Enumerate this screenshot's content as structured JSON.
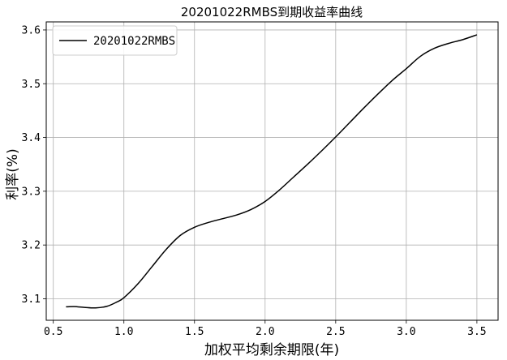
{
  "chart_data": {
    "type": "line",
    "title": "20201022RMBS到期收益率曲线",
    "xlabel": "加权平均剩余期限(年)",
    "ylabel": "利率(%)",
    "xlim": [
      0.45,
      3.65
    ],
    "ylim": [
      3.06,
      3.615
    ],
    "xticks": [
      0.5,
      1.0,
      1.5,
      2.0,
      2.5,
      3.0,
      3.5
    ],
    "xtick_labels": [
      "0.5",
      "1.0",
      "1.5",
      "2.0",
      "2.5",
      "3.0",
      "3.5"
    ],
    "yticks": [
      3.1,
      3.2,
      3.3,
      3.4,
      3.5,
      3.6
    ],
    "ytick_labels": [
      "3.1",
      "3.2",
      "3.3",
      "3.4",
      "3.5",
      "3.6"
    ],
    "grid": true,
    "legend": "top-left",
    "series": [
      {
        "name": "20201022RMBS",
        "color": "#000000",
        "x": [
          0.59,
          0.65,
          0.72,
          0.8,
          0.88,
          0.95,
          1.0,
          1.1,
          1.2,
          1.3,
          1.4,
          1.5,
          1.6,
          1.7,
          1.8,
          1.9,
          2.0,
          2.1,
          2.2,
          2.3,
          2.4,
          2.5,
          2.6,
          2.7,
          2.8,
          2.9,
          3.0,
          3.1,
          3.2,
          3.3,
          3.4,
          3.5
        ],
        "y": [
          3.085,
          3.0855,
          3.084,
          3.083,
          3.086,
          3.094,
          3.102,
          3.128,
          3.16,
          3.192,
          3.218,
          3.233,
          3.242,
          3.249,
          3.256,
          3.266,
          3.281,
          3.302,
          3.326,
          3.35,
          3.375,
          3.401,
          3.428,
          3.455,
          3.481,
          3.506,
          3.528,
          3.551,
          3.566,
          3.575,
          3.582,
          3.591
        ]
      }
    ]
  }
}
